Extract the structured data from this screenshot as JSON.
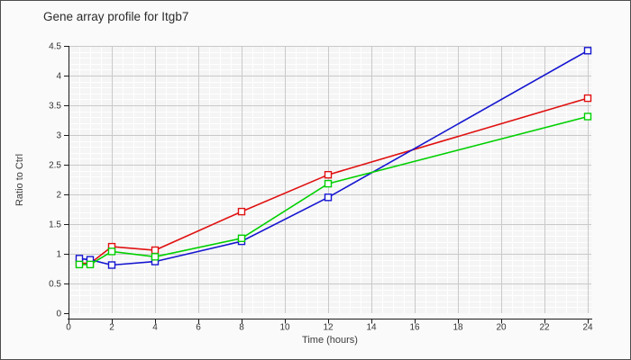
{
  "chart_data": {
    "type": "line",
    "title": "Gene array profile for Itgb7",
    "xlabel": "Time (hours)",
    "ylabel": "Ratio to Ctrl",
    "x": [
      0.5,
      1,
      2,
      4,
      8,
      12,
      24
    ],
    "series": [
      {
        "name": "red-series",
        "color": "#e01010",
        "values": [
          0.84,
          0.84,
          1.12,
          1.06,
          1.71,
          2.33,
          3.62
        ]
      },
      {
        "name": "blue-series",
        "color": "#1515d0",
        "values": [
          0.92,
          0.9,
          0.81,
          0.87,
          1.21,
          1.95,
          4.42
        ]
      },
      {
        "name": "green-series",
        "color": "#00d000",
        "values": [
          0.82,
          0.82,
          1.04,
          0.95,
          1.26,
          2.18,
          3.31
        ]
      }
    ],
    "xlim": [
      0,
      24
    ],
    "ylim": [
      0,
      4.5
    ],
    "x_ticks": [
      0,
      2,
      4,
      6,
      8,
      10,
      12,
      14,
      16,
      18,
      20,
      22,
      24
    ],
    "x_tick_labels": [
      "0",
      "2",
      "4",
      "6",
      "8",
      "10",
      "12",
      "14",
      "16",
      "18",
      "20",
      "22",
      "24"
    ],
    "y_ticks": [
      0,
      0.5,
      1,
      1.5,
      2,
      2.5,
      3,
      3.5,
      4,
      4.5
    ],
    "y_tick_labels": [
      "0",
      "0.5",
      "1",
      "1.5",
      "2",
      "2.5",
      "3",
      "3.5",
      "4",
      "4.5"
    ],
    "grid": true,
    "minor_grid": true,
    "legend": "none",
    "marker": "open-square"
  },
  "colors": {
    "background": "#fafafa",
    "plot_background": "#f5f5f5",
    "minor_grid": "#ffffff",
    "major_grid": "#c9c9c9",
    "axis": "#1a1a1a",
    "tick_text": "#333333",
    "title_text": "#2b2b2b",
    "border": "#4d4d4d",
    "marker_fill": "#ffffff"
  }
}
